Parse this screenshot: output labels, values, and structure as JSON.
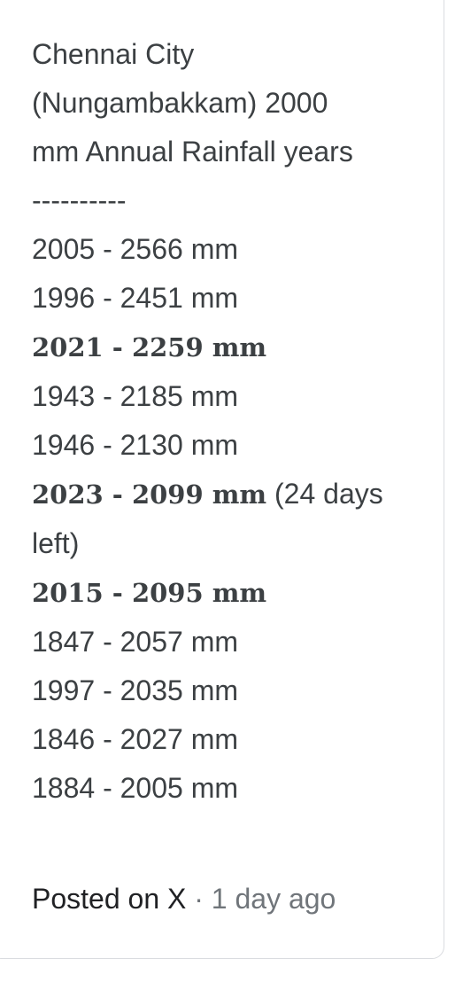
{
  "post": {
    "title_lines": [
      "Chennai City",
      "(Nungambakkam) 2000",
      "mm Annual Rainfall years"
    ],
    "separator": "----------",
    "entries": [
      {
        "text": "2005 - 2566 mm",
        "bold": false,
        "note": ""
      },
      {
        "text": "1996 - 2451 mm",
        "bold": false,
        "note": ""
      },
      {
        "text": "2021 - 2259 mm",
        "bold": true,
        "note": ""
      },
      {
        "text": "1943 - 2185 mm",
        "bold": false,
        "note": ""
      },
      {
        "text": "1946 - 2130 mm",
        "bold": false,
        "note": ""
      },
      {
        "text": "2023 - 2099 mm",
        "bold": true,
        "note": " (24 days left)"
      },
      {
        "text": "2015 - 2095 mm",
        "bold": true,
        "note": ""
      },
      {
        "text": "1847 - 2057 mm",
        "bold": false,
        "note": ""
      },
      {
        "text": "1997 - 2035 mm",
        "bold": false,
        "note": ""
      },
      {
        "text": "1846 - 2027 mm",
        "bold": false,
        "note": ""
      },
      {
        "text": "1884 - 2005 mm",
        "bold": false,
        "note": ""
      }
    ]
  },
  "footer": {
    "source": "Posted on X",
    "dot": "·",
    "time": "1 day ago"
  },
  "colors": {
    "text": "#3c4043",
    "source": "#202124",
    "muted": "#70757a",
    "border": "#dadce0"
  }
}
